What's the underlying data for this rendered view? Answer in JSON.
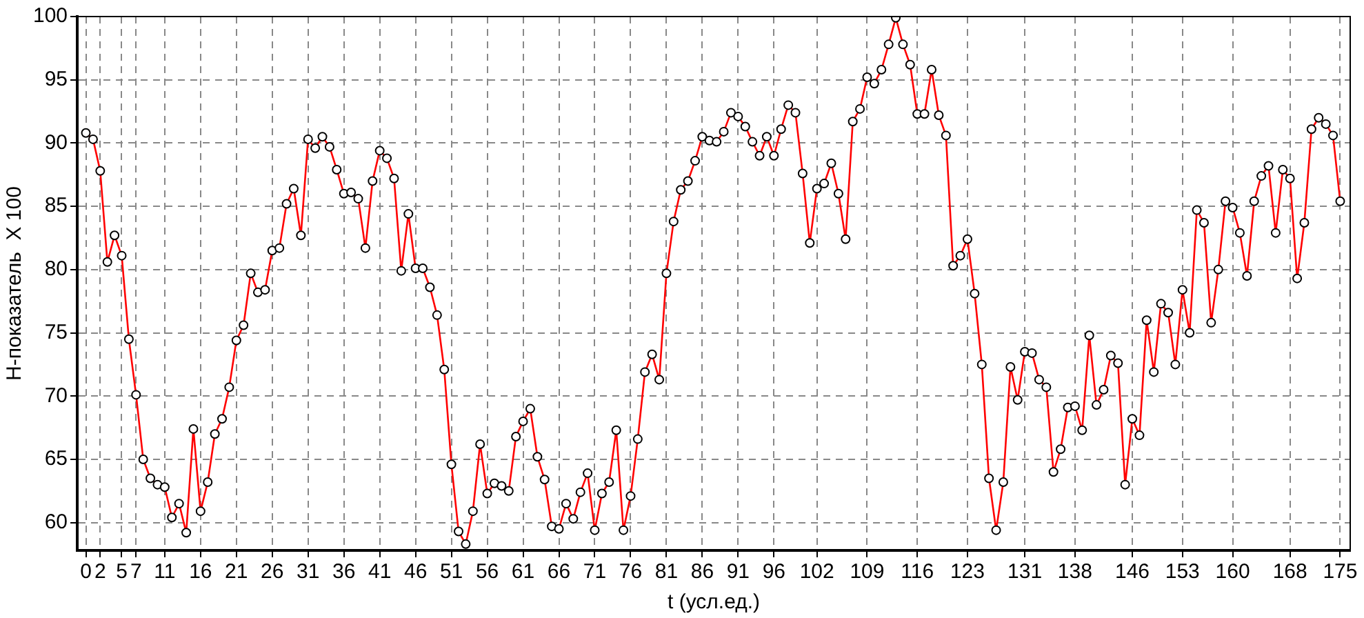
{
  "chart_data": {
    "type": "line",
    "xlabel": "t (усл.ед.)",
    "ylabel": "Н-показатель  X 100",
    "x": [
      0,
      1,
      2,
      3,
      4,
      5,
      6,
      7,
      8,
      9,
      10,
      11,
      12,
      13,
      14,
      15,
      16,
      17,
      18,
      19,
      20,
      21,
      22,
      23,
      24,
      25,
      26,
      27,
      28,
      29,
      30,
      31,
      32,
      33,
      34,
      35,
      36,
      37,
      38,
      39,
      40,
      41,
      42,
      43,
      44,
      45,
      46,
      47,
      48,
      49,
      50,
      51,
      52,
      53,
      54,
      55,
      56,
      57,
      58,
      59,
      60,
      61,
      62,
      63,
      64,
      65,
      66,
      67,
      68,
      69,
      70,
      71,
      72,
      73,
      74,
      75,
      76,
      77,
      78,
      79,
      80,
      81,
      82,
      83,
      84,
      85,
      86,
      87,
      88,
      89,
      90,
      91,
      92,
      93,
      94,
      95,
      96,
      97,
      98,
      99,
      100,
      101,
      102,
      103,
      104,
      105,
      106,
      107,
      108,
      109,
      110,
      111,
      112,
      113,
      114,
      115,
      116,
      117,
      118,
      119,
      120,
      121,
      122,
      123,
      124,
      125,
      126,
      127,
      128,
      129,
      130,
      131,
      132,
      133,
      134,
      135,
      136,
      137,
      138,
      139,
      140,
      141,
      142,
      143,
      144,
      145,
      146,
      147,
      148,
      149,
      150,
      151,
      152,
      153,
      154,
      155,
      156,
      157,
      158,
      159,
      160,
      161,
      162,
      163,
      164,
      165,
      166,
      167,
      168,
      169,
      170,
      171,
      172,
      173,
      174,
      175
    ],
    "series": [
      {
        "color": "#ff0000",
        "values": [
          90.8,
          90.3,
          87.8,
          80.6,
          82.7,
          81.1,
          74.5,
          70.1,
          65.0,
          63.5,
          63.0,
          62.8,
          60.4,
          61.5,
          59.2,
          67.4,
          60.9,
          63.2,
          67.0,
          68.2,
          70.7,
          74.4,
          75.6,
          79.7,
          78.2,
          78.4,
          81.5,
          81.7,
          85.2,
          86.4,
          82.7,
          90.3,
          89.6,
          90.5,
          89.7,
          87.9,
          86.0,
          86.1,
          85.6,
          81.7,
          87.0,
          89.4,
          88.8,
          87.2,
          79.9,
          84.4,
          80.1,
          80.1,
          78.6,
          76.4,
          72.1,
          64.6,
          59.3,
          58.3,
          60.9,
          66.2,
          62.3,
          63.1,
          62.9,
          62.5,
          66.8,
          68.0,
          69.0,
          65.2,
          63.4,
          59.7,
          59.5,
          61.5,
          60.3,
          62.4,
          63.9,
          59.4,
          62.3,
          63.2,
          67.3,
          59.4,
          62.1,
          66.6,
          71.9,
          73.3,
          71.3,
          79.7,
          83.8,
          86.3,
          87.0,
          88.6,
          90.5,
          90.2,
          90.1,
          90.9,
          92.4,
          92.1,
          91.3,
          90.1,
          89.0,
          90.5,
          89.0,
          91.1,
          93.0,
          92.4,
          87.6,
          82.1,
          86.4,
          86.8,
          88.4,
          86.0,
          82.4,
          91.7,
          92.7,
          95.2,
          94.7,
          95.8,
          97.8,
          99.9,
          97.8,
          96.2,
          92.3,
          92.3,
          95.8,
          92.2,
          90.6,
          80.3,
          81.1,
          82.4,
          78.1,
          72.5,
          63.5,
          59.4,
          63.2,
          72.3,
          69.7,
          73.5,
          73.4,
          71.3,
          70.7,
          64.0,
          65.8,
          69.1,
          69.2,
          67.3,
          74.8,
          69.3,
          70.5,
          73.2,
          72.6,
          63.0,
          68.2,
          66.9,
          76.0,
          71.9,
          77.3,
          76.6,
          72.5,
          78.4,
          75.0,
          84.7,
          83.7,
          75.8,
          80.0,
          85.4,
          84.9,
          82.9,
          79.5,
          85.4,
          87.4,
          88.2,
          82.9,
          87.9,
          87.2,
          79.3,
          83.7,
          91.1,
          92.0,
          91.5,
          90.6,
          85.4
        ]
      }
    ],
    "xlim": [
      -1.2,
      176.4
    ],
    "xticks": [
      0,
      2,
      5,
      7,
      11,
      16,
      21,
      26,
      31,
      36,
      41,
      46,
      51,
      56,
      61,
      66,
      71,
      76,
      81,
      86,
      91,
      96,
      102,
      109,
      116,
      123,
      131,
      138,
      146,
      153,
      160,
      168,
      175
    ],
    "ylim": [
      57.8,
      100
    ],
    "yticks": [
      60,
      65,
      70,
      75,
      80,
      85,
      90,
      95,
      100
    ],
    "grid": true,
    "marker": "circle",
    "line_style": "solid"
  }
}
